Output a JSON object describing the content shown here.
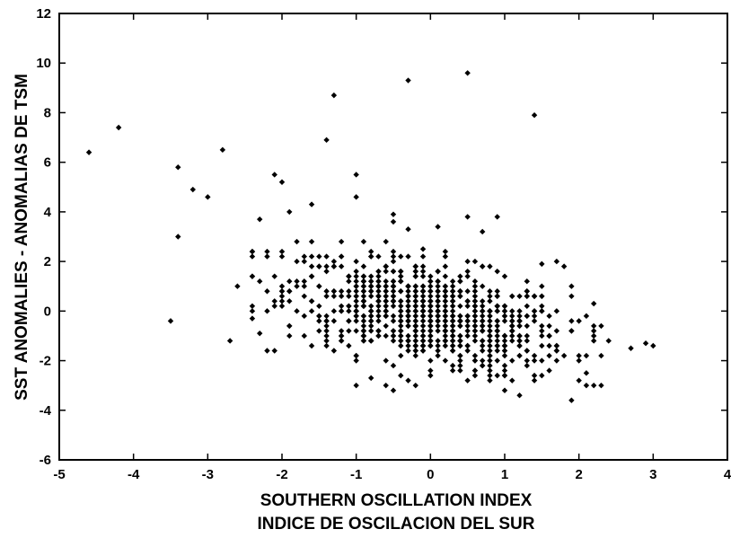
{
  "chart_data": {
    "type": "scatter",
    "xlabel": [
      "SOUTHERN OSCILLATION INDEX",
      "INDICE DE OSCILACION DEL SUR"
    ],
    "ylabel": "SST ANOMALIES - ANOMALIAS DE TSM",
    "xlim": [
      -5,
      4
    ],
    "ylim": [
      -6,
      12
    ],
    "xticks": [
      -5,
      -4,
      -3,
      -2,
      -1,
      0,
      1,
      2,
      3,
      4
    ],
    "yticks": [
      -6,
      -4,
      -2,
      0,
      2,
      4,
      6,
      8,
      10,
      12
    ],
    "grid": false,
    "marker_color": "#000000",
    "outlier_points": [
      [
        -4.6,
        6.4
      ],
      [
        -4.2,
        7.4
      ],
      [
        -3.4,
        5.8
      ],
      [
        -3.2,
        4.9
      ],
      [
        -3.0,
        4.6
      ],
      [
        -2.8,
        6.5
      ],
      [
        -3.4,
        3.0
      ],
      [
        -3.5,
        -0.4
      ],
      [
        -2.6,
        1.0
      ],
      [
        -2.7,
        -1.2
      ],
      [
        -1.4,
        6.9
      ],
      [
        -1.3,
        8.7
      ],
      [
        -0.3,
        9.3
      ],
      [
        0.5,
        9.6
      ],
      [
        1.4,
        7.9
      ],
      [
        -2.1,
        5.5
      ],
      [
        -2.0,
        5.2
      ],
      [
        -1.0,
        5.5
      ],
      [
        -1.0,
        4.6
      ],
      [
        -1.6,
        4.3
      ],
      [
        -2.3,
        3.7
      ],
      [
        -1.9,
        4.0
      ],
      [
        -0.5,
        3.9
      ],
      [
        0.5,
        3.8
      ],
      [
        0.9,
        3.8
      ],
      [
        0.1,
        3.4
      ],
      [
        -0.3,
        3.3
      ],
      [
        0.7,
        3.2
      ],
      [
        1.5,
        1.9
      ],
      [
        1.7,
        2.0
      ],
      [
        1.8,
        1.8
      ],
      [
        2.2,
        0.3
      ],
      [
        2.4,
        -1.2
      ],
      [
        2.7,
        -1.5
      ],
      [
        2.9,
        -1.3
      ],
      [
        3.0,
        -1.4
      ],
      [
        1.9,
        -3.6
      ],
      [
        1.2,
        -3.4
      ],
      [
        1.0,
        -3.2
      ],
      [
        -0.5,
        -3.2
      ],
      [
        -0.8,
        -2.7
      ],
      [
        -2.1,
        -1.6
      ],
      [
        -2.4,
        -0.3
      ],
      [
        -2.3,
        -0.9
      ],
      [
        2.0,
        -2.8
      ],
      [
        2.1,
        -2.5
      ],
      [
        1.9,
        -0.8
      ],
      [
        -2.2,
        2.4
      ],
      [
        -1.8,
        2.8
      ],
      [
        -0.1,
        2.5
      ]
    ],
    "cluster": {
      "count": 860,
      "x_center": -0.05,
      "x_spread": 0.95,
      "y_intercept": -0.15,
      "slope": -0.55,
      "y_spread": 1.05,
      "x_range": [
        -2.4,
        2.3
      ],
      "y_range": [
        -3.1,
        3.6
      ]
    }
  }
}
